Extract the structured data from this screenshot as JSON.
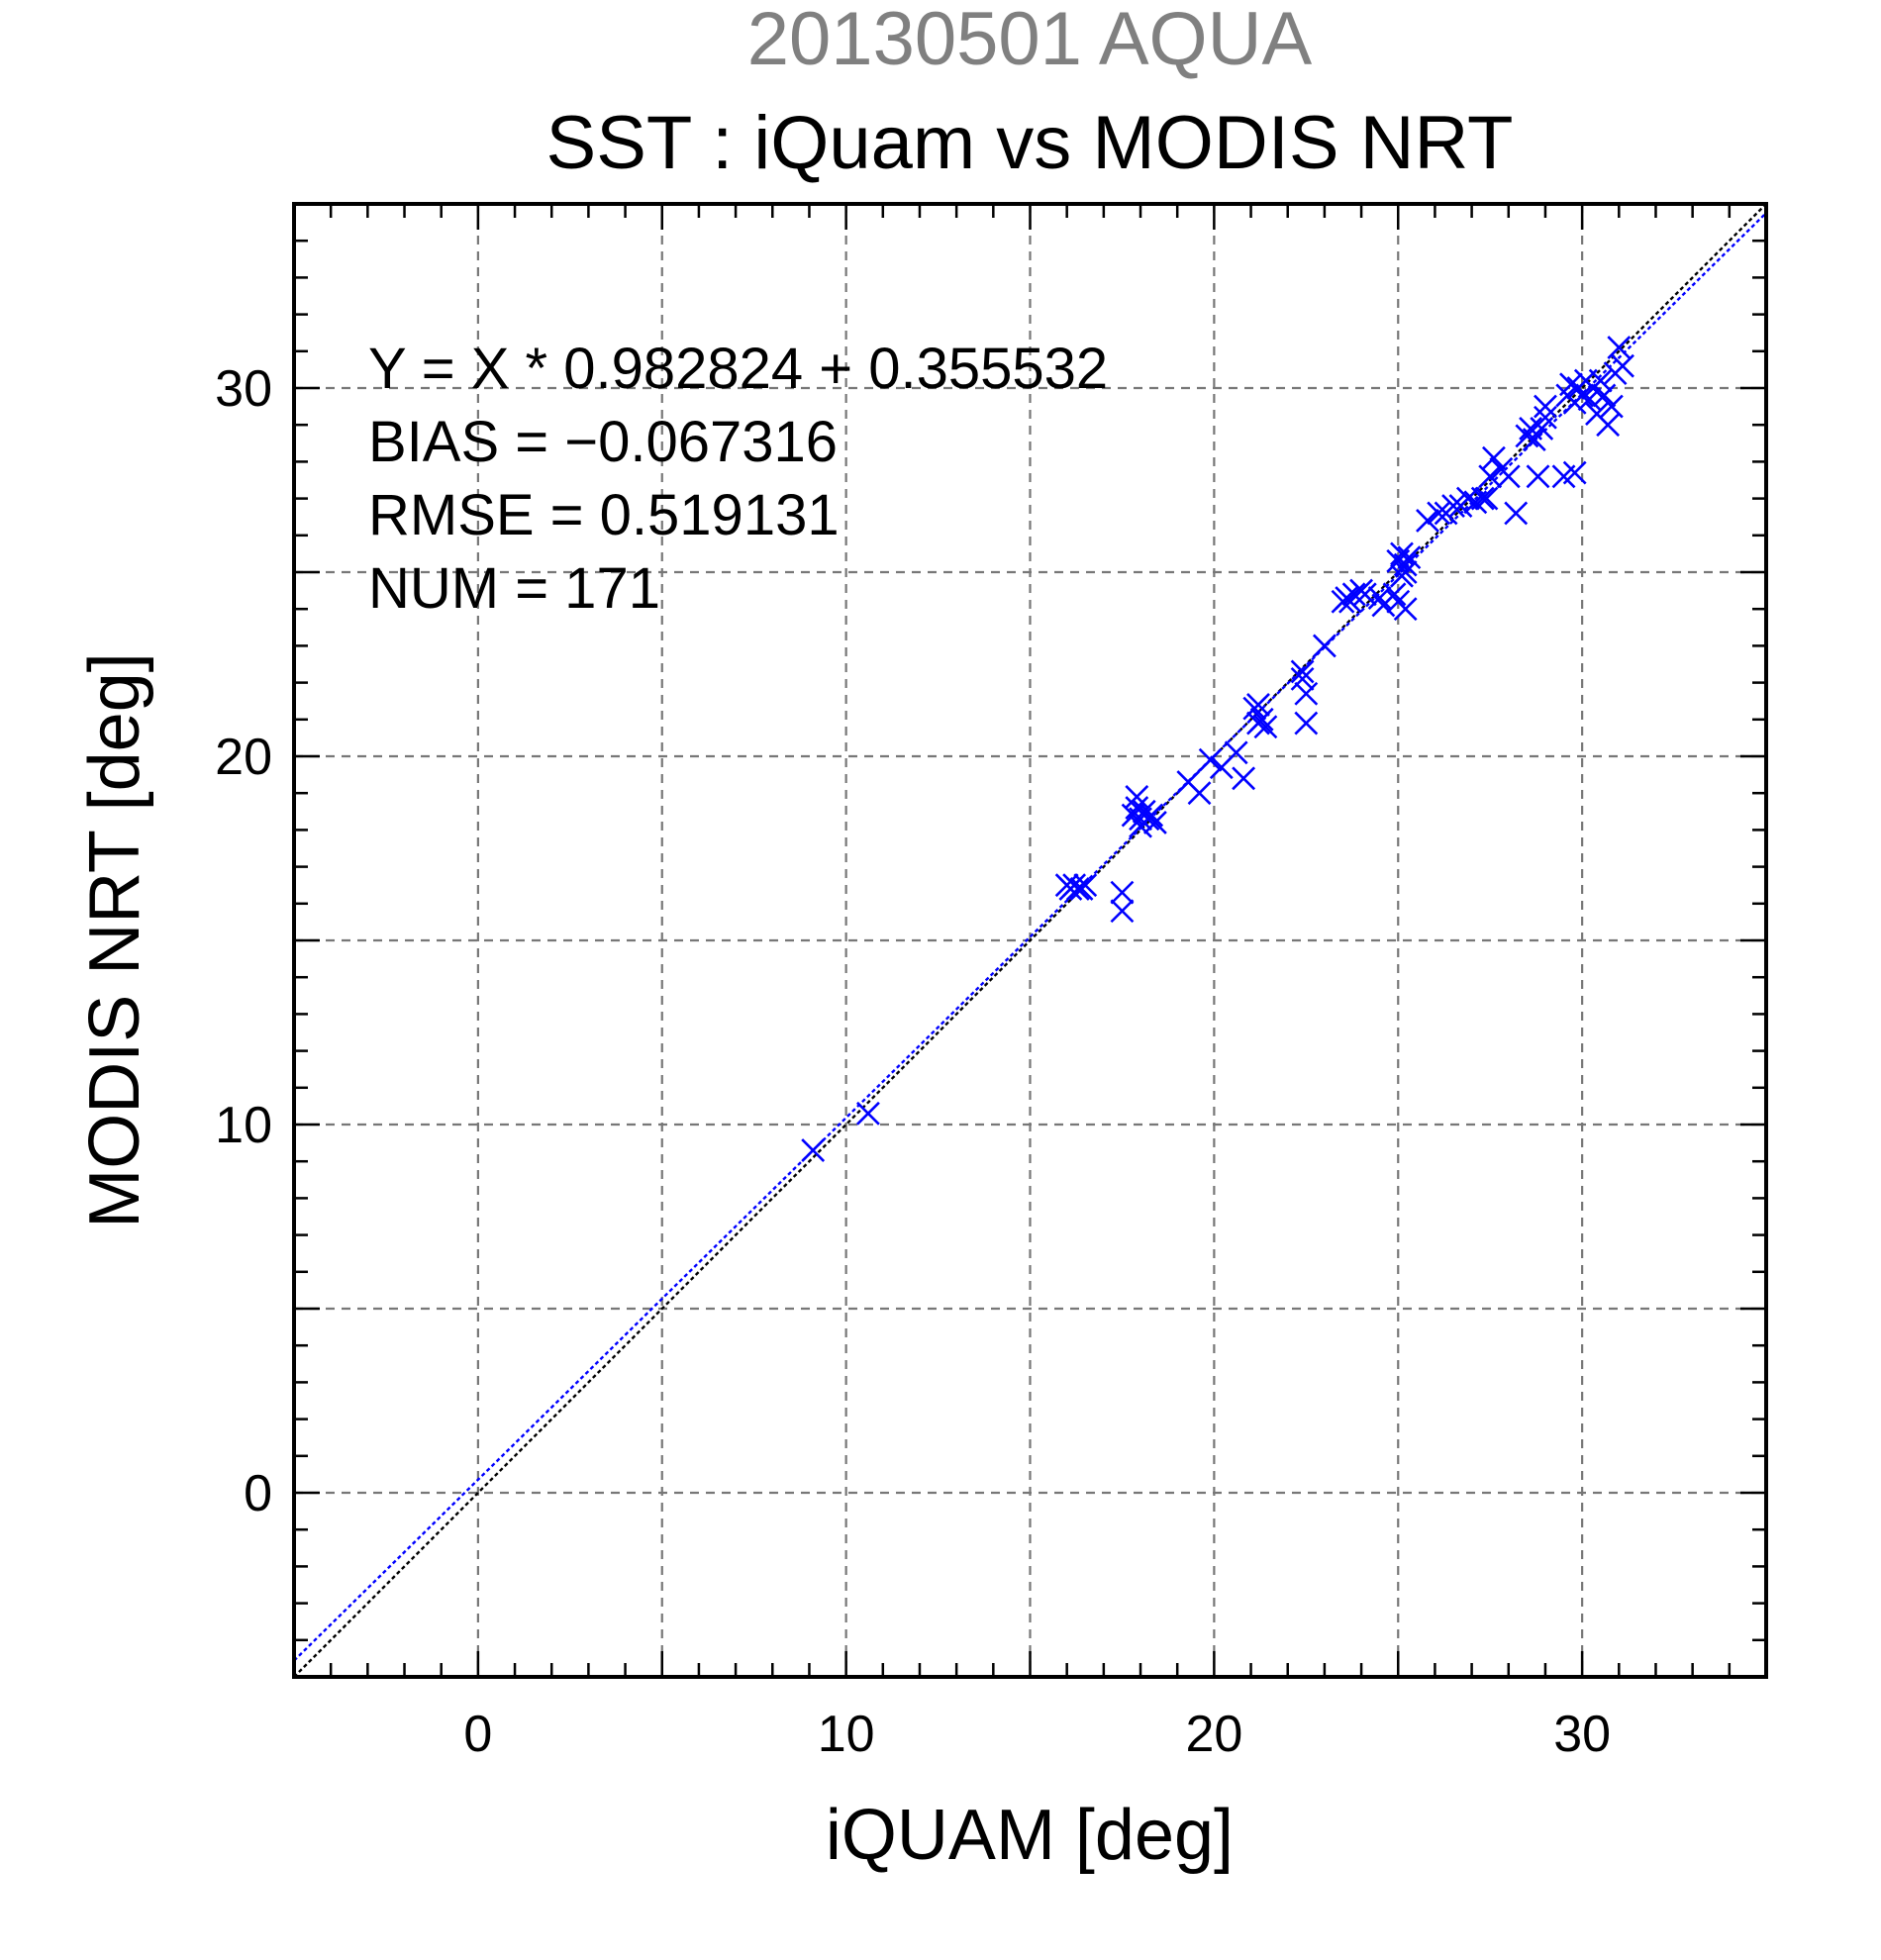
{
  "chart_data": {
    "type": "scatter",
    "title_top": "20130501 AQUA",
    "title": "SST : iQuam vs MODIS NRT",
    "xlabel": "iQUAM [deg]",
    "ylabel": "MODIS NRT [deg]",
    "xlim": [
      -5,
      35
    ],
    "ylim": [
      -5,
      35
    ],
    "xticks": [
      0,
      10,
      20,
      30
    ],
    "yticks": [
      0,
      10,
      20,
      30
    ],
    "grid": true,
    "marker_color": "#0000ff",
    "fit_line_color": "#0000ff",
    "identity_line_color": "#000000",
    "fit": {
      "slope": 0.982824,
      "intercept": 0.355532
    },
    "stats": [
      "Y = X * 0.982824 + 0.355532",
      "BIAS = −0.067316",
      "RMSE = 0.519131",
      "NUM = 171"
    ],
    "points": [
      [
        9.1,
        9.3
      ],
      [
        10.6,
        10.3
      ],
      [
        16.0,
        16.5
      ],
      [
        16.1,
        16.4
      ],
      [
        16.2,
        16.5
      ],
      [
        16.3,
        16.4
      ],
      [
        16.4,
        16.4
      ],
      [
        16.5,
        16.5
      ],
      [
        17.5,
        16.3
      ],
      [
        17.5,
        15.8
      ],
      [
        17.8,
        18.4
      ],
      [
        17.9,
        18.9
      ],
      [
        17.9,
        18.6
      ],
      [
        18.0,
        18.3
      ],
      [
        18.1,
        18.5
      ],
      [
        18.2,
        18.3
      ],
      [
        18.3,
        18.4
      ],
      [
        18.4,
        18.2
      ],
      [
        18.0,
        18.1
      ],
      [
        19.3,
        19.3
      ],
      [
        19.6,
        19.0
      ],
      [
        19.9,
        19.9
      ],
      [
        20.2,
        19.7
      ],
      [
        20.6,
        20.1
      ],
      [
        20.8,
        19.4
      ],
      [
        21.1,
        21.3
      ],
      [
        21.2,
        21.4
      ],
      [
        21.2,
        20.9
      ],
      [
        21.3,
        21.0
      ],
      [
        21.4,
        20.8
      ],
      [
        22.4,
        22.3
      ],
      [
        22.4,
        22.1
      ],
      [
        22.5,
        21.7
      ],
      [
        22.5,
        20.9
      ],
      [
        23.0,
        23.0
      ],
      [
        23.5,
        24.2
      ],
      [
        23.6,
        24.3
      ],
      [
        23.7,
        24.2
      ],
      [
        23.8,
        24.4
      ],
      [
        24.0,
        24.5
      ],
      [
        24.1,
        24.4
      ],
      [
        24.5,
        24.3
      ],
      [
        24.6,
        24.1
      ],
      [
        24.9,
        24.4
      ],
      [
        25.0,
        24.2
      ],
      [
        25.2,
        24.0
      ],
      [
        25.0,
        25.3
      ],
      [
        25.1,
        25.5
      ],
      [
        25.2,
        25.2
      ],
      [
        25.3,
        25.4
      ],
      [
        25.2,
        25.0
      ],
      [
        25.1,
        24.9
      ],
      [
        25.8,
        26.4
      ],
      [
        26.1,
        26.6
      ],
      [
        26.3,
        26.6
      ],
      [
        26.5,
        26.8
      ],
      [
        26.7,
        26.8
      ],
      [
        26.9,
        27.0
      ],
      [
        27.1,
        26.9
      ],
      [
        27.3,
        27.0
      ],
      [
        27.4,
        27.0
      ],
      [
        27.5,
        27.6
      ],
      [
        27.6,
        28.1
      ],
      [
        27.8,
        27.8
      ],
      [
        28.0,
        27.6
      ],
      [
        28.2,
        26.6
      ],
      [
        28.5,
        28.7
      ],
      [
        28.6,
        28.9
      ],
      [
        28.7,
        28.6
      ],
      [
        28.9,
        28.9
      ],
      [
        29.0,
        29.2
      ],
      [
        28.8,
        27.6
      ],
      [
        29.0,
        29.5
      ],
      [
        29.5,
        27.6
      ],
      [
        29.8,
        27.7
      ],
      [
        29.6,
        29.8
      ],
      [
        29.7,
        30.1
      ],
      [
        29.8,
        29.6
      ],
      [
        29.9,
        30.0
      ],
      [
        30.0,
        29.8
      ],
      [
        30.1,
        30.2
      ],
      [
        30.2,
        29.7
      ],
      [
        30.3,
        30.0
      ],
      [
        30.4,
        29.3
      ],
      [
        30.5,
        30.2
      ],
      [
        30.6,
        29.8
      ],
      [
        30.7,
        29.0
      ],
      [
        30.8,
        29.5
      ],
      [
        30.9,
        30.4
      ],
      [
        31.0,
        31.1
      ],
      [
        31.1,
        30.6
      ]
    ]
  }
}
